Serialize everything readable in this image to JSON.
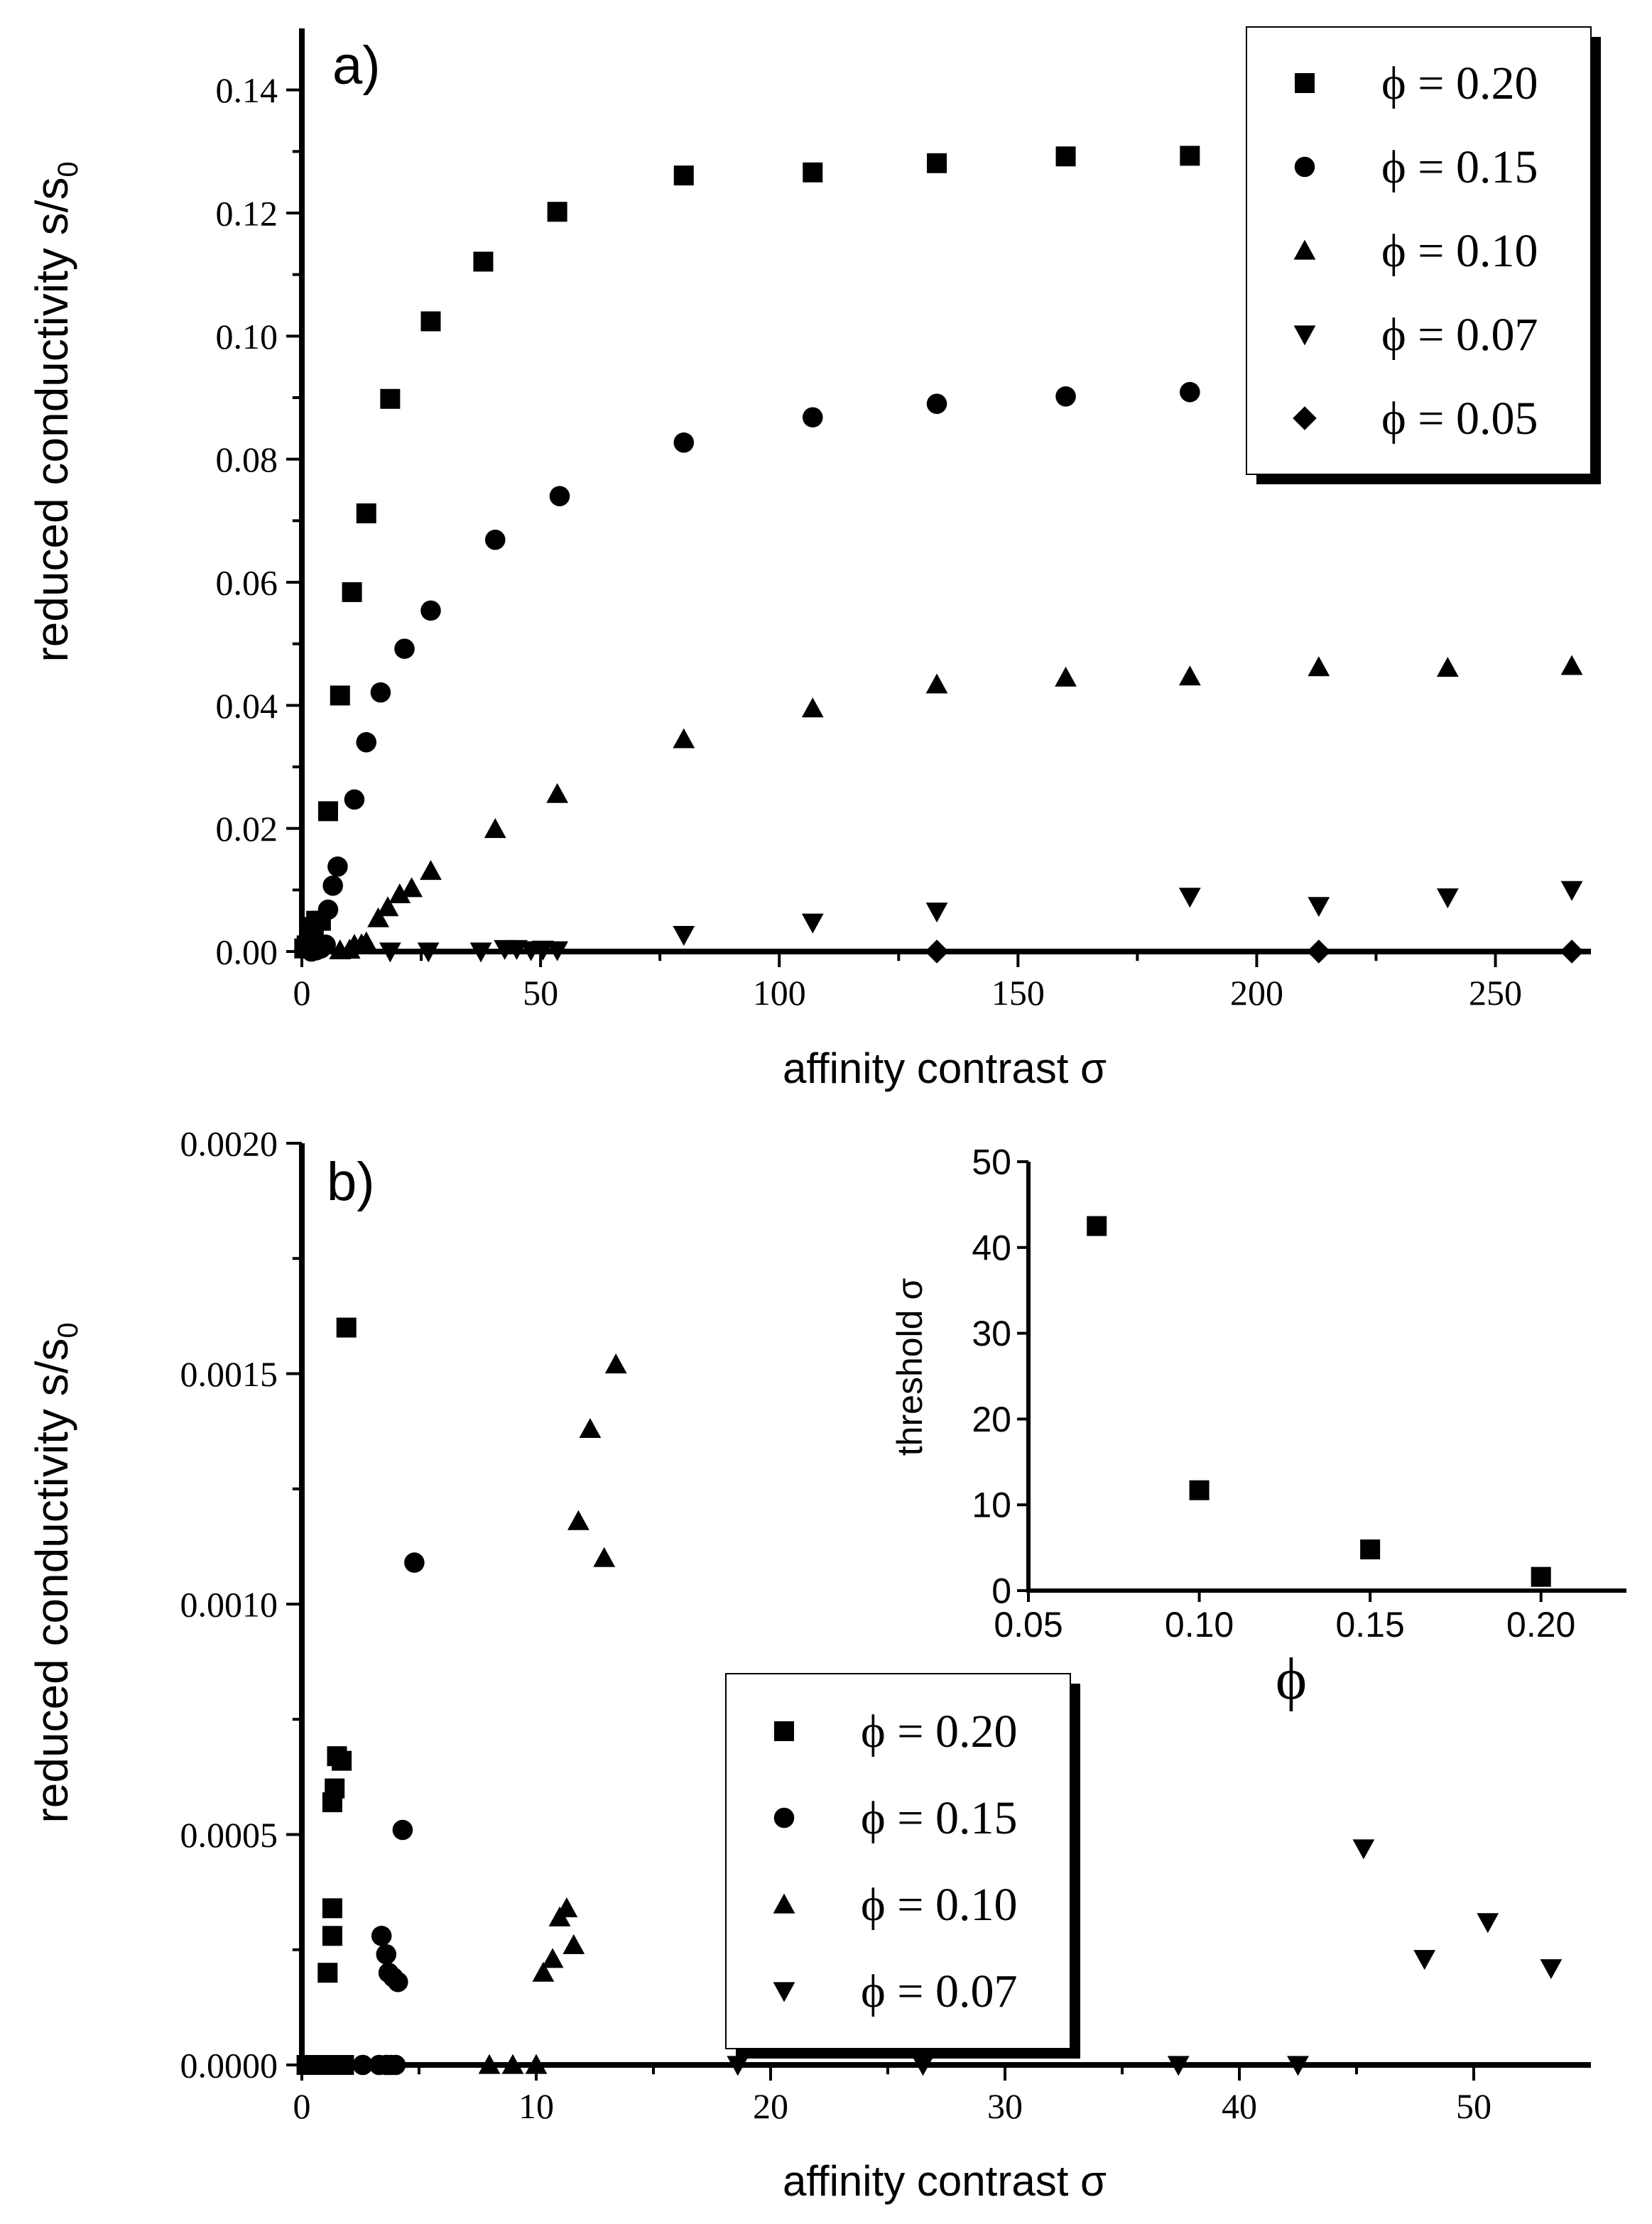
{
  "chart_data": [
    {
      "type": "scatter",
      "panel_label": "a)",
      "xlabel": "affinity contrast σ",
      "ylabel": "reduced conductivity s/s",
      "ylabel_sub": "0",
      "xlim": [
        0,
        270
      ],
      "ylim": [
        0,
        0.15
      ],
      "xticks": [
        0,
        50,
        100,
        150,
        200,
        250
      ],
      "xtick_labels": [
        "0",
        "50",
        "100",
        "150",
        "200",
        "250"
      ],
      "yticks": [
        0,
        0.02,
        0.04,
        0.06,
        0.08,
        0.1,
        0.12,
        0.14
      ],
      "ytick_labels": [
        "0.00",
        "0.02",
        "0.04",
        "0.06",
        "0.08",
        "0.10",
        "0.12",
        "0.14"
      ],
      "legend": "top-right",
      "series": [
        {
          "name": "ϕ = 0.20",
          "marker": "square",
          "x": [
            0.5,
            1,
            1.5,
            2,
            2.5,
            3,
            4,
            5.5,
            8,
            10.5,
            13.5,
            18.5,
            27,
            38,
            53.5,
            80,
            107,
            133,
            160,
            186
          ],
          "y": [
            0.0005,
            0.001,
            0.002,
            0.003,
            0.004,
            0.005,
            0.005,
            0.0228,
            0.0416,
            0.0584,
            0.0712,
            0.0898,
            0.1024,
            0.1121,
            0.1202,
            0.1261,
            0.1266,
            0.1281,
            0.1292,
            0.1293
          ]
        },
        {
          "name": "ϕ = 0.15",
          "marker": "circle",
          "x": [
            2,
            3,
            4,
            5,
            5.5,
            6.5,
            7.5,
            11,
            13.5,
            16.5,
            21.5,
            27,
            40.5,
            54,
            80,
            107,
            133,
            160,
            186
          ],
          "y": [
            0,
            0.0002,
            0.0005,
            0.0011,
            0.0068,
            0.0107,
            0.0138,
            0.0247,
            0.034,
            0.0421,
            0.0492,
            0.0554,
            0.0669,
            0.074,
            0.0827,
            0.0868,
            0.089,
            0.0902,
            0.0909
          ]
        },
        {
          "name": "ϕ = 0.10",
          "marker": "triangle-up",
          "x": [
            8,
            10,
            11,
            12.5,
            13.5,
            16,
            18,
            20.5,
            23,
            27,
            40.5,
            53.5,
            80,
            107,
            133,
            160,
            186,
            213,
            240,
            266
          ],
          "y": [
            0.0002,
            0.0003,
            0.0011,
            0.0012,
            0.0015,
            0.0054,
            0.0072,
            0.0093,
            0.0103,
            0.0131,
            0.0199,
            0.0256,
            0.0345,
            0.0395,
            0.0434,
            0.0445,
            0.0447,
            0.0462,
            0.0461,
            0.0464
          ]
        },
        {
          "name": "ϕ = 0.07",
          "marker": "triangle-down",
          "x": [
            18.5,
            26.5,
            37.5,
            42.5,
            45,
            48,
            50.5,
            53.5,
            80,
            107,
            133,
            186,
            213,
            240,
            266
          ],
          "y": [
            0,
            0,
            0,
            0.0004,
            0.0004,
            0.0002,
            0.0003,
            0.0002,
            0.0027,
            0.0047,
            0.0065,
            0.0089,
            0.0074,
            0.0088,
            0.01
          ]
        },
        {
          "name": "ϕ = 0.05",
          "marker": "diamond",
          "x": [
            133,
            213,
            266
          ],
          "y": [
            0,
            0,
            0
          ]
        }
      ]
    },
    {
      "type": "scatter",
      "panel_label": "b)",
      "xlabel": "affinity contrast σ",
      "ylabel": "reduced conductivity s/s",
      "ylabel_sub": "0",
      "xlim": [
        0,
        55
      ],
      "ylim": [
        0,
        0.002
      ],
      "xticks": [
        0,
        10,
        20,
        30,
        40,
        50
      ],
      "xtick_labels": [
        "0",
        "10",
        "20",
        "30",
        "40",
        "50"
      ],
      "yticks": [
        0,
        0.0005,
        0.001,
        0.0015,
        0.002
      ],
      "ytick_labels": [
        "0.0000",
        "0.0005",
        "0.0010",
        "0.0015",
        "0.0020"
      ],
      "legend": "bottom-center",
      "series": [
        {
          "name": "ϕ = 0.20",
          "marker": "square",
          "x": [
            0.2,
            0.4,
            0.6,
            0.8,
            1.0,
            1.1,
            1.2,
            1.3,
            1.4,
            1.5,
            1.6,
            1.7,
            1.8,
            1.1,
            1.3,
            1.3,
            1.3,
            1.4,
            1.5,
            1.7,
            1.9
          ],
          "y": [
            0,
            0,
            0,
            0,
            0,
            0,
            0,
            0,
            0,
            0,
            0,
            0,
            0,
            0.0002,
            0.00028,
            0.00034,
            0.00057,
            0.0006,
            0.00067,
            0.00066,
            0.0016
          ]
        },
        {
          "name": "ϕ = 0.15",
          "marker": "circle",
          "x": [
            2.6,
            3.3,
            3.6,
            3.8,
            4.0,
            3.4,
            3.6,
            3.7,
            3.9,
            4.1,
            4.3,
            4.8
          ],
          "y": [
            0,
            0,
            0,
            0,
            0,
            0.00028,
            0.00024,
            0.0002,
            0.00019,
            0.00018,
            0.00051,
            0.00109
          ]
        },
        {
          "name": "ϕ = 0.10",
          "marker": "triangle-up",
          "x": [
            8.0,
            9.0,
            10.0,
            10.3,
            10.7,
            11.0,
            11.3,
            11.6,
            11.8,
            12.3,
            12.9,
            13.4
          ],
          "y": [
            0,
            0,
            0,
            0.0002,
            0.00023,
            0.00032,
            0.00034,
            0.00026,
            0.00118,
            0.00138,
            0.0011,
            0.00152
          ]
        },
        {
          "name": "ϕ = 0.07",
          "marker": "triangle-down",
          "x": [
            18.6,
            26.5,
            37.4,
            42.5,
            45.3,
            47.9,
            50.6,
            53.3
          ],
          "y": [
            0,
            0,
            0,
            0,
            0.00047,
            0.00023,
            0.00031,
            0.00021
          ]
        }
      ]
    },
    {
      "type": "scatter",
      "panel_label": "inset",
      "xlabel": "ϕ",
      "ylabel": "threshold σ",
      "xlim": [
        0.05,
        0.225
      ],
      "ylim": [
        0,
        50
      ],
      "xticks": [
        0.05,
        0.1,
        0.15,
        0.2
      ],
      "xtick_labels": [
        "0.05",
        "0.10",
        "0.15",
        "0.20"
      ],
      "yticks": [
        0,
        10,
        20,
        30,
        40,
        50
      ],
      "ytick_labels": [
        "0",
        "10",
        "20",
        "30",
        "40",
        "50"
      ],
      "series": [
        {
          "name": "threshold",
          "marker": "square",
          "x": [
            0.07,
            0.1,
            0.15,
            0.2
          ],
          "y": [
            42.5,
            11.7,
            4.8,
            1.6
          ]
        }
      ]
    }
  ]
}
